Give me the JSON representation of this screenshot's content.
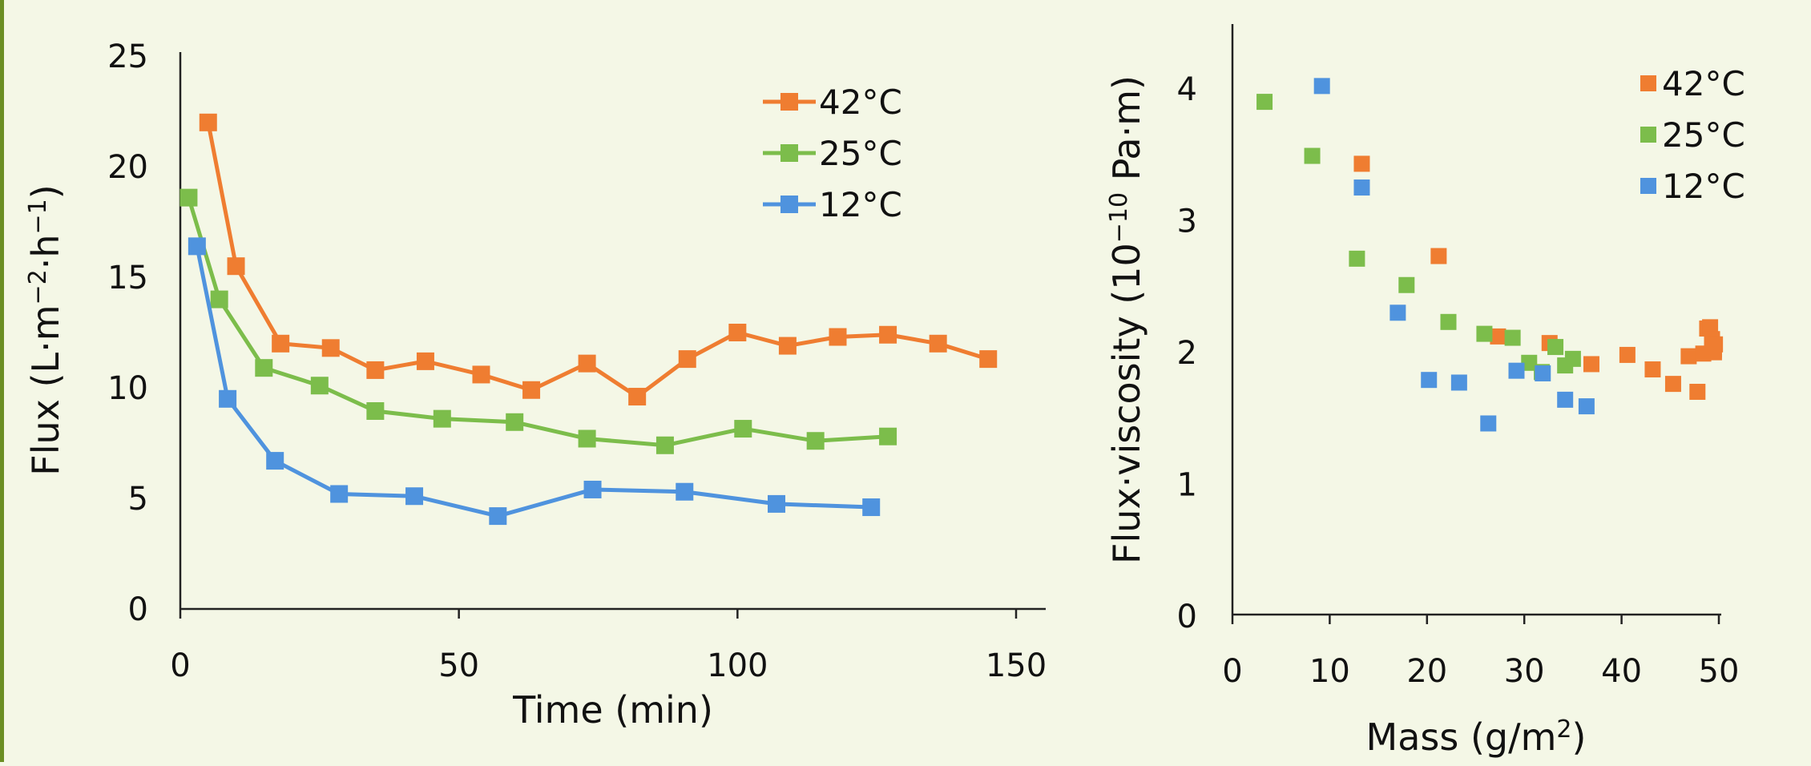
{
  "colors": {
    "c42": "#ef7d31",
    "c25": "#7cbd4b",
    "c12": "#4f93de",
    "background": "#f4f7e6"
  },
  "chart_data": [
    {
      "type": "line",
      "xlabel": "Time (min)",
      "ylabel_main": "Flux (L·m",
      "ylabel_sup1": "−2",
      "ylabel_mid": "·h",
      "ylabel_sup2": "−1",
      "ylabel_end": ")",
      "xlim": [
        0,
        150
      ],
      "ylim": [
        0,
        25
      ],
      "xticks": [
        "0",
        "50",
        "100",
        "150"
      ],
      "yticks": [
        "0",
        "5",
        "10",
        "15",
        "20",
        "25"
      ],
      "legend_position": "top-right",
      "series": [
        {
          "name": "42°C",
          "color": "#ef7d31",
          "x": [
            5,
            10,
            18,
            27,
            35,
            44,
            54,
            63,
            73,
            82,
            91,
            100,
            109,
            118,
            127,
            136,
            145
          ],
          "y": [
            22.0,
            15.5,
            12.0,
            11.8,
            10.8,
            11.2,
            10.6,
            9.9,
            11.1,
            9.6,
            11.3,
            12.5,
            11.9,
            12.3,
            12.4,
            12.0,
            11.3
          ]
        },
        {
          "name": "25°C",
          "color": "#7cbd4b",
          "x": [
            1.5,
            7,
            15,
            25,
            35,
            47,
            60,
            73,
            87,
            101,
            114,
            127
          ],
          "y": [
            18.6,
            14.0,
            10.9,
            10.1,
            8.95,
            8.6,
            8.45,
            7.7,
            7.4,
            8.15,
            7.6,
            7.8
          ]
        },
        {
          "name": "12°C",
          "color": "#4f93de",
          "x": [
            3,
            8.5,
            17,
            28.5,
            42,
            57,
            74,
            90.5,
            107,
            124
          ],
          "y": [
            16.4,
            9.5,
            6.7,
            5.2,
            5.1,
            4.2,
            5.4,
            5.3,
            4.75,
            4.6
          ]
        }
      ]
    },
    {
      "type": "scatter",
      "xlabel_main": "Mass (g/m",
      "xlabel_sup": "2",
      "xlabel_end": ")",
      "ylabel_main": "Flux·viscosity (10",
      "ylabel_sup": "−10",
      "ylabel_end": " Pa·m)",
      "xlim": [
        0,
        50
      ],
      "ylim": [
        0,
        4.5
      ],
      "xticks": [
        "0",
        "10",
        "20",
        "30",
        "40",
        "50"
      ],
      "yticks": [
        "0",
        "1",
        "2",
        "3",
        "4"
      ],
      "legend_position": "top-right",
      "series": [
        {
          "name": "42°C",
          "color": "#ef7d31",
          "x": [
            13.3,
            21.2,
            27.3,
            32.6,
            36.9,
            40.6,
            43.2,
            45.3,
            46.9,
            47.8,
            48.4,
            48.8,
            49.1,
            49.3,
            49.5,
            49.6,
            49.5
          ],
          "y": [
            3.42,
            2.72,
            2.11,
            2.06,
            1.9,
            1.97,
            1.86,
            1.75,
            1.96,
            1.69,
            1.98,
            2.17,
            2.18,
            2.09,
            2.01,
            2.05,
            1.99
          ]
        },
        {
          "name": "25°C",
          "color": "#7cbd4b",
          "x": [
            3.3,
            8.2,
            12.8,
            17.9,
            22.2,
            25.9,
            28.8,
            30.5,
            31.8,
            33.2,
            34.2,
            35.0
          ],
          "y": [
            3.89,
            3.48,
            2.7,
            2.5,
            2.22,
            2.13,
            2.1,
            1.91,
            1.84,
            2.03,
            1.89,
            1.94
          ]
        },
        {
          "name": "12°C",
          "color": "#4f93de",
          "x": [
            9.2,
            13.3,
            17.0,
            20.2,
            23.3,
            26.3,
            29.2,
            31.9,
            34.2,
            36.4
          ],
          "y": [
            4.01,
            3.24,
            2.29,
            1.78,
            1.76,
            1.45,
            1.85,
            1.83,
            1.63,
            1.58
          ]
        }
      ]
    }
  ]
}
